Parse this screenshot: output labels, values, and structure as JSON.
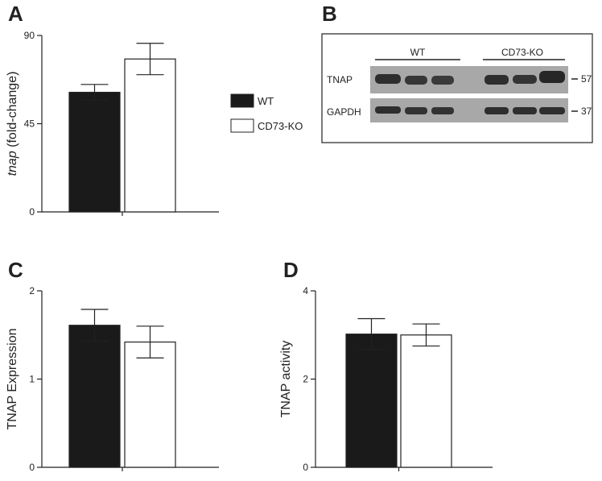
{
  "panels": {
    "A": "A",
    "B": "B",
    "C": "C",
    "D": "D"
  },
  "legend": {
    "items": [
      {
        "label": "WT",
        "color": "#1a1a1a"
      },
      {
        "label": "CD73-KO",
        "color": "#ffffff"
      }
    ]
  },
  "blot": {
    "groups": [
      "WT",
      "CD73-KO"
    ],
    "rows": [
      {
        "label": "TNAP",
        "mw": "57"
      },
      {
        "label": "GAPDH",
        "mw": "37"
      }
    ]
  },
  "colors": {
    "wt": "#1a1a1a",
    "ko": "#ffffff",
    "blot_bg": "#a8a8a8",
    "band": "#2e2e2e"
  },
  "chart_data": [
    {
      "panel": "A",
      "type": "bar",
      "categories": [
        "WT",
        "CD73-KO"
      ],
      "values": [
        61,
        78
      ],
      "errors": [
        4,
        8
      ],
      "ylabel_italic": "tnap",
      "ylabel_rest": " (fold-change)",
      "ylim": [
        0,
        90
      ],
      "yticks": [
        "0",
        "45",
        "90"
      ],
      "ytick_values": [
        0,
        45,
        90
      ]
    },
    {
      "panel": "C",
      "type": "bar",
      "categories": [
        "WT",
        "CD73-KO"
      ],
      "values": [
        1.61,
        1.42
      ],
      "errors": [
        0.18,
        0.18
      ],
      "ylabel": "TNAP Expression",
      "ylim": [
        0,
        2
      ],
      "yticks": [
        "0",
        "1",
        "2"
      ],
      "ytick_values": [
        0,
        1,
        2
      ]
    },
    {
      "panel": "D",
      "type": "bar",
      "categories": [
        "WT",
        "CD73-KO"
      ],
      "values": [
        3.02,
        3.0
      ],
      "errors": [
        0.35,
        0.25
      ],
      "ylabel": "TNAP activity",
      "ylim": [
        0,
        4
      ],
      "yticks": [
        "0",
        "2",
        "4"
      ],
      "ytick_values": [
        0,
        2,
        4
      ]
    }
  ]
}
